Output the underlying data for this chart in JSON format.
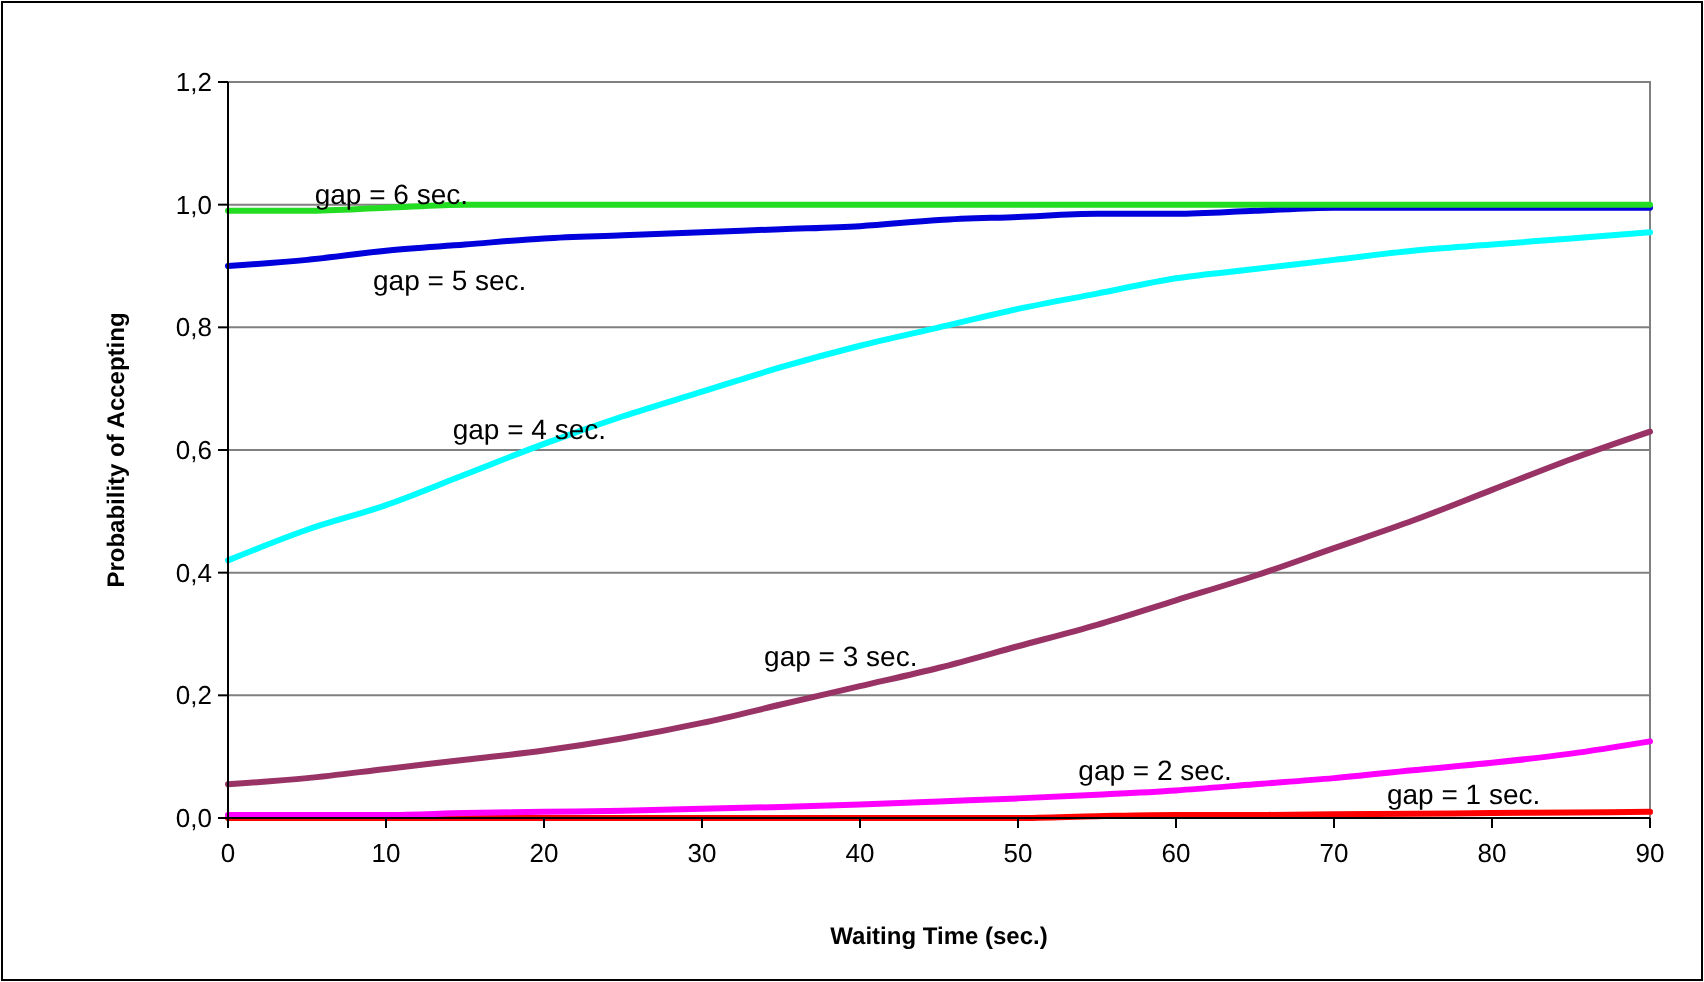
{
  "chart_data": {
    "type": "line",
    "xlabel": "Waiting Time (sec.)",
    "ylabel": "Probability of Accepting",
    "x": [
      0,
      5,
      10,
      15,
      20,
      25,
      30,
      35,
      40,
      45,
      50,
      55,
      60,
      65,
      70,
      75,
      80,
      85,
      90
    ],
    "series": [
      {
        "name": "gap = 1 sec.",
        "color": "#ff0000",
        "values": [
          0,
          0,
          0,
          0,
          0,
          0,
          0,
          0,
          0,
          0,
          0,
          0.003,
          0.005,
          0.005,
          0.006,
          0.007,
          0.008,
          0.009,
          0.01
        ]
      },
      {
        "name": "gap = 2 sec.",
        "color": "#ff00ff",
        "values": [
          0.005,
          0.005,
          0.005,
          0.008,
          0.01,
          0.012,
          0.015,
          0.018,
          0.022,
          0.027,
          0.032,
          0.038,
          0.045,
          0.055,
          0.065,
          0.078,
          0.09,
          0.105,
          0.125
        ]
      },
      {
        "name": "gap = 3 sec.",
        "color": "#993366",
        "values": [
          0.055,
          0.065,
          0.08,
          0.095,
          0.11,
          0.13,
          0.155,
          0.185,
          0.215,
          0.245,
          0.28,
          0.315,
          0.355,
          0.395,
          0.44,
          0.485,
          0.535,
          0.585,
          0.63
        ]
      },
      {
        "name": "gap = 4 sec.",
        "color": "#00ffff",
        "values": [
          0.42,
          0.47,
          0.51,
          0.56,
          0.61,
          0.655,
          0.695,
          0.735,
          0.77,
          0.8,
          0.83,
          0.855,
          0.88,
          0.895,
          0.91,
          0.925,
          0.935,
          0.945,
          0.955
        ]
      },
      {
        "name": "gap = 5 sec.",
        "color": "#0000dd",
        "values": [
          0.9,
          0.91,
          0.925,
          0.935,
          0.945,
          0.95,
          0.955,
          0.96,
          0.965,
          0.975,
          0.98,
          0.985,
          0.985,
          0.99,
          0.995,
          0.995,
          0.995,
          0.995,
          0.995
        ]
      },
      {
        "name": "gap = 6 sec.",
        "color": "#22dd22",
        "values": [
          0.99,
          0.99,
          0.995,
          1,
          1,
          1,
          1,
          1,
          1,
          1,
          1,
          1,
          1,
          1,
          1,
          1,
          1,
          1,
          1
        ]
      }
    ],
    "xlim": [
      0,
      90
    ],
    "xticks": [
      0,
      10,
      20,
      30,
      40,
      50,
      60,
      70,
      80,
      90
    ],
    "ylim": [
      0,
      1.2
    ],
    "yticks": [
      {
        "value": 0,
        "label": "0,0"
      },
      {
        "value": 0.2,
        "label": "0,2"
      },
      {
        "value": 0.4,
        "label": "0,4"
      },
      {
        "value": 0.6,
        "label": "0,6"
      },
      {
        "value": 0.8,
        "label": "0,8"
      },
      {
        "value": 1,
        "label": "1,0"
      },
      {
        "value": 1.2,
        "label": "1,2"
      }
    ],
    "grid": "y",
    "marker": "none",
    "line_style": "solid"
  }
}
